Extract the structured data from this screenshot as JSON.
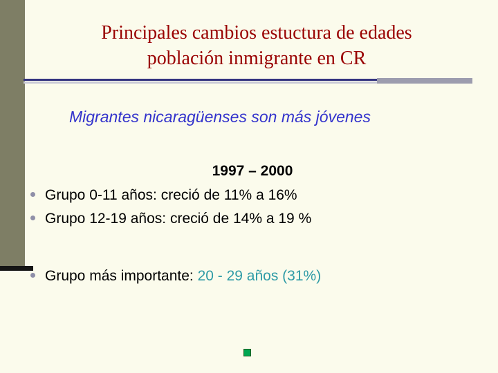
{
  "slide": {
    "title_line1": "Principales cambios estuctura de edades",
    "title_line2": "población inmigrante en CR",
    "subtitle": "Migrantes nicaragüenses son más jóvenes",
    "period_heading": "1997 – 2000",
    "bullets": [
      "Grupo 0-11 años: creció de 11% a 16%",
      "Grupo 12-19 años: creció de 14% a 19 %"
    ],
    "last_bullet": {
      "lead_text": "Grupo más importante: ",
      "highlight_text": "20 - 29 años (31%)"
    },
    "colors": {
      "title_maroon": "#990000",
      "subtitle_blue": "#3333CC",
      "highlight_teal": "#2E9BA6",
      "sidebar_olive": "#7E7E65",
      "rule_navy": "#33337F",
      "square_green": "#00A651",
      "background_cream": "#FBFBEC"
    }
  }
}
